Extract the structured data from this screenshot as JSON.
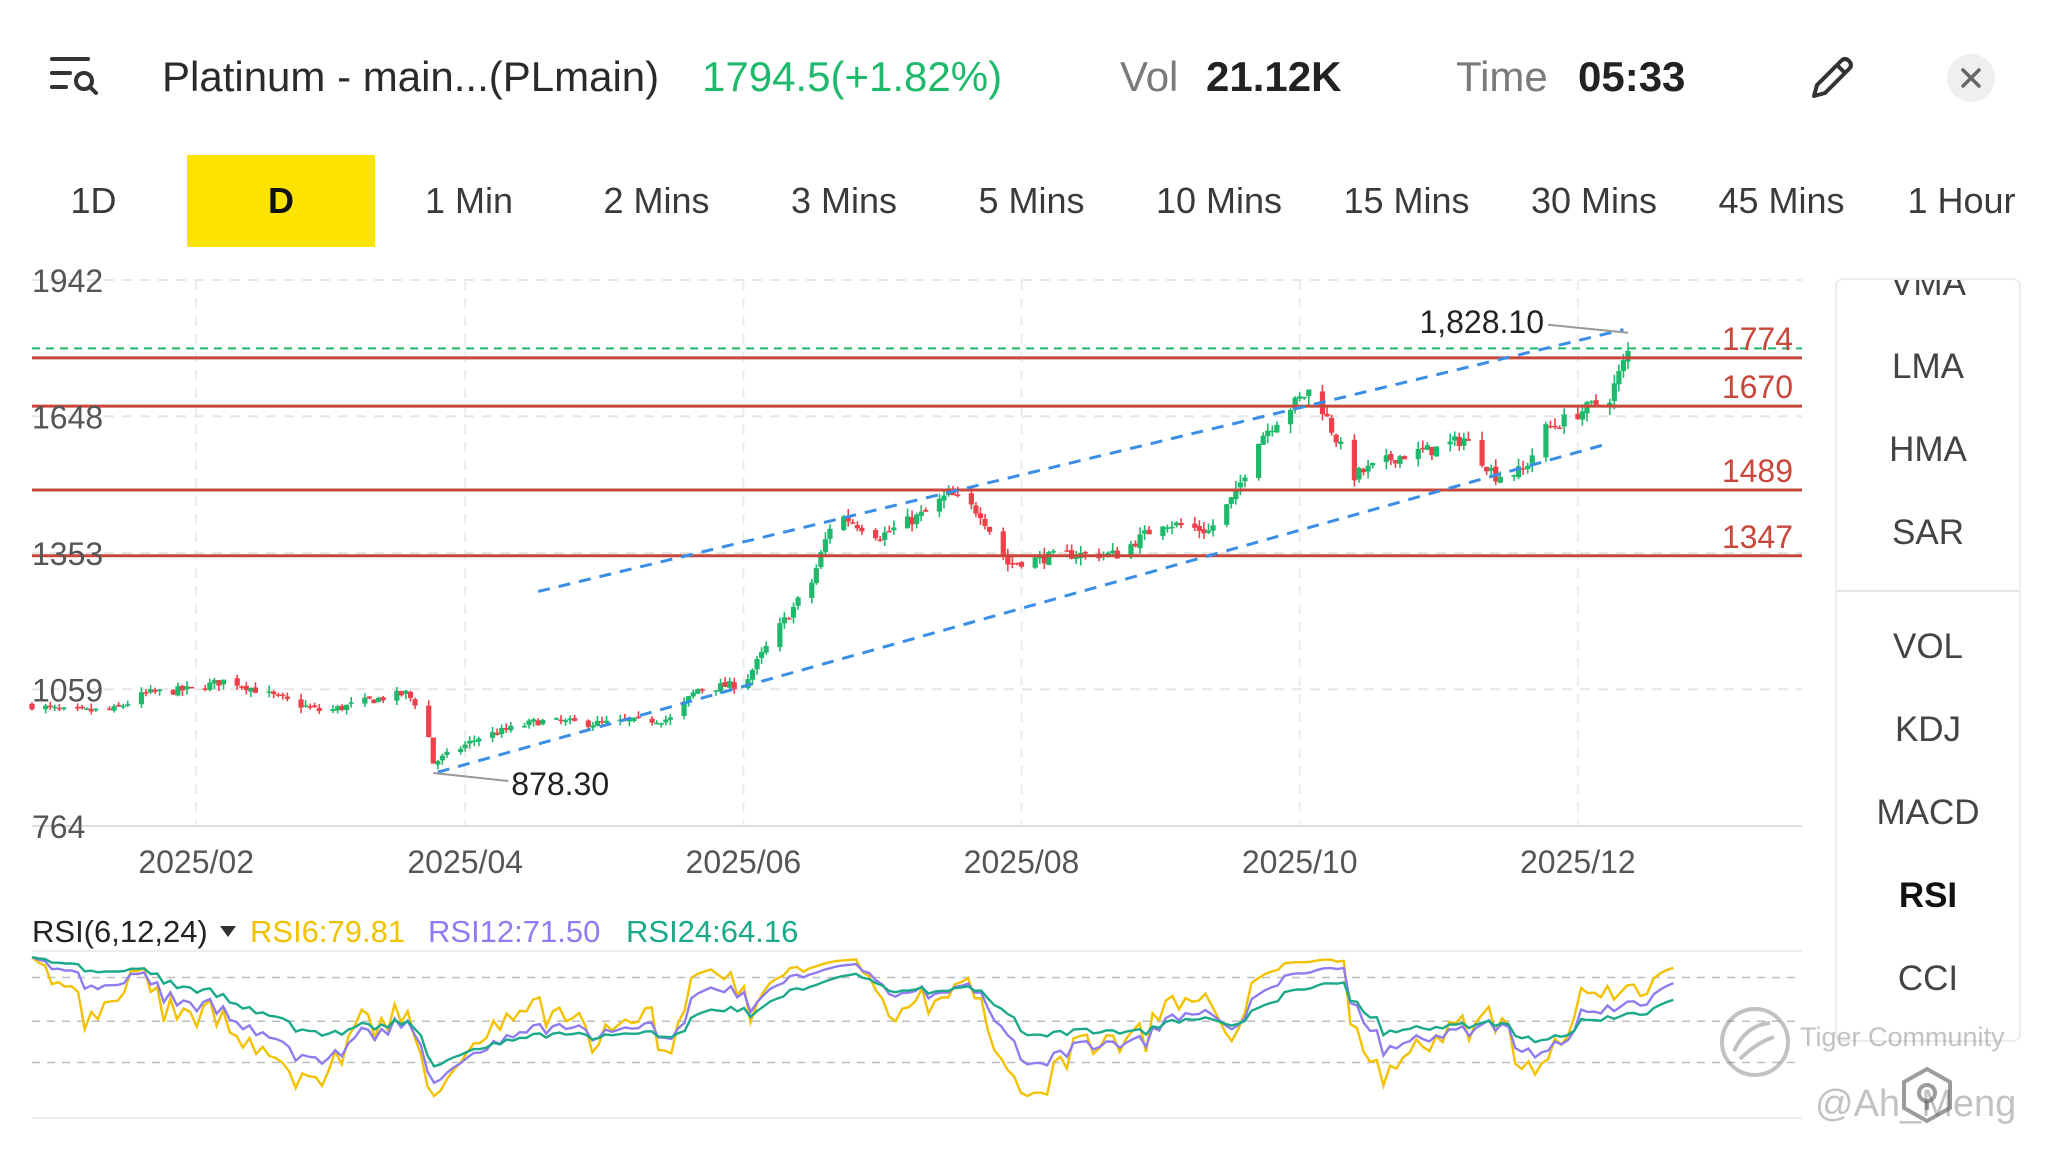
{
  "header": {
    "title": "Platinum - main...(PLmain)",
    "price_change": "1794.5(+1.82%)",
    "vol_label": "Vol",
    "vol_value": "21.12K",
    "time_label": "Time",
    "time_value": "05:33",
    "icons": {
      "menu": "list-search-icon",
      "edit": "pencil-icon",
      "close": "close-icon"
    }
  },
  "timeframes": [
    {
      "label": "1D",
      "active": false
    },
    {
      "label": "D",
      "active": true
    },
    {
      "label": "1 Min",
      "active": false
    },
    {
      "label": "2 Mins",
      "active": false
    },
    {
      "label": "3 Mins",
      "active": false
    },
    {
      "label": "5 Mins",
      "active": false
    },
    {
      "label": "10 Mins",
      "active": false
    },
    {
      "label": "15 Mins",
      "active": false
    },
    {
      "label": "30 Mins",
      "active": false
    },
    {
      "label": "45 Mins",
      "active": false
    },
    {
      "label": "1 Hour",
      "active": false
    }
  ],
  "indicators_main": [
    "VMA",
    "LMA",
    "HMA",
    "SAR"
  ],
  "indicators_sub": [
    "VOL",
    "KDJ",
    "MACD",
    "RSI",
    "CCI"
  ],
  "active_indicator": "RSI",
  "colors": {
    "up": "#1fb96c",
    "down": "#f0404a",
    "support": "#c8463a",
    "channel": "#3a8ee6",
    "active_tab": "#fde300",
    "rsi6": "#f2c200",
    "rsi12": "#8f7cf0",
    "rsi24": "#1aa98a"
  },
  "chart_data": {
    "type": "candlestick",
    "y_ticks": [
      "1942",
      "1648",
      "1353",
      "1059",
      "764"
    ],
    "ylim": [
      764,
      1942
    ],
    "x_ticks": [
      "2025/02",
      "2025/04",
      "2025/06",
      "2025/08",
      "2025/10",
      "2025/12"
    ],
    "x_range": [
      "2025-01-10",
      "2025-12-27"
    ],
    "support_levels": [
      {
        "value": 1774,
        "label": "1774"
      },
      {
        "value": 1670,
        "label": "1670"
      },
      {
        "value": 1489,
        "label": "1489"
      },
      {
        "value": 1347,
        "label": "1347"
      }
    ],
    "current_price": 1794.5,
    "annotations": {
      "high": {
        "date": "2025-12-26",
        "value": 1828.1,
        "label": "1,828.10"
      },
      "low": {
        "date": "2025-04-08",
        "value": 878.3,
        "label": "878.30"
      }
    },
    "channel_lines": [
      {
        "from": [
          "2025-05-01",
          1270
        ],
        "to": [
          "2025-12-25",
          1835
        ]
      },
      {
        "from": [
          "2025-04-09",
          880
        ],
        "to": [
          "2025-12-22",
          1590
        ]
      }
    ],
    "price_path": [
      [
        "2025-01-10",
        1025
      ],
      [
        "2025-01-18",
        1010
      ],
      [
        "2025-01-28",
        1015
      ],
      [
        "2025-02-04",
        1050
      ],
      [
        "2025-02-15",
        1060
      ],
      [
        "2025-02-22",
        1080
      ],
      [
        "2025-03-05",
        1040
      ],
      [
        "2025-03-15",
        1010
      ],
      [
        "2025-03-25",
        1035
      ],
      [
        "2025-04-02",
        1050
      ],
      [
        "2025-04-06",
        1010
      ],
      [
        "2025-04-08",
        900
      ],
      [
        "2025-04-18",
        955
      ],
      [
        "2025-05-01",
        990
      ],
      [
        "2025-05-15",
        985
      ],
      [
        "2025-05-30",
        995
      ],
      [
        "2025-06-05",
        1060
      ],
      [
        "2025-06-15",
        1070
      ],
      [
        "2025-06-22",
        1180
      ],
      [
        "2025-06-30",
        1290
      ],
      [
        "2025-07-05",
        1440
      ],
      [
        "2025-07-15",
        1390
      ],
      [
        "2025-07-25",
        1440
      ],
      [
        "2025-07-30",
        1480
      ],
      [
        "2025-08-06",
        1440
      ],
      [
        "2025-08-12",
        1330
      ],
      [
        "2025-08-25",
        1350
      ],
      [
        "2025-09-05",
        1350
      ],
      [
        "2025-09-15",
        1420
      ],
      [
        "2025-09-25",
        1400
      ],
      [
        "2025-10-01",
        1480
      ],
      [
        "2025-10-06",
        1600
      ],
      [
        "2025-10-12",
        1660
      ],
      [
        "2025-10-18",
        1710
      ],
      [
        "2025-10-22",
        1620
      ],
      [
        "2025-10-27",
        1520
      ],
      [
        "2025-11-05",
        1560
      ],
      [
        "2025-11-15",
        1580
      ],
      [
        "2025-11-20",
        1600
      ],
      [
        "2025-11-27",
        1520
      ],
      [
        "2025-12-03",
        1530
      ],
      [
        "2025-12-08",
        1620
      ],
      [
        "2025-12-16",
        1660
      ],
      [
        "2025-12-22",
        1690
      ],
      [
        "2025-12-27",
        1810
      ]
    ],
    "rsi": {
      "label": "RSI(6,12,24)",
      "series": [
        {
          "name": "RSI6",
          "value": 79.81,
          "label": "RSI6:79.81"
        },
        {
          "name": "RSI12",
          "value": 71.5,
          "label": "RSI12:71.50"
        },
        {
          "name": "RSI24",
          "value": 64.16,
          "label": "RSI24:64.16"
        }
      ]
    }
  },
  "watermark": {
    "line1": "Tiger Community",
    "line2": "@Ah_Meng"
  }
}
